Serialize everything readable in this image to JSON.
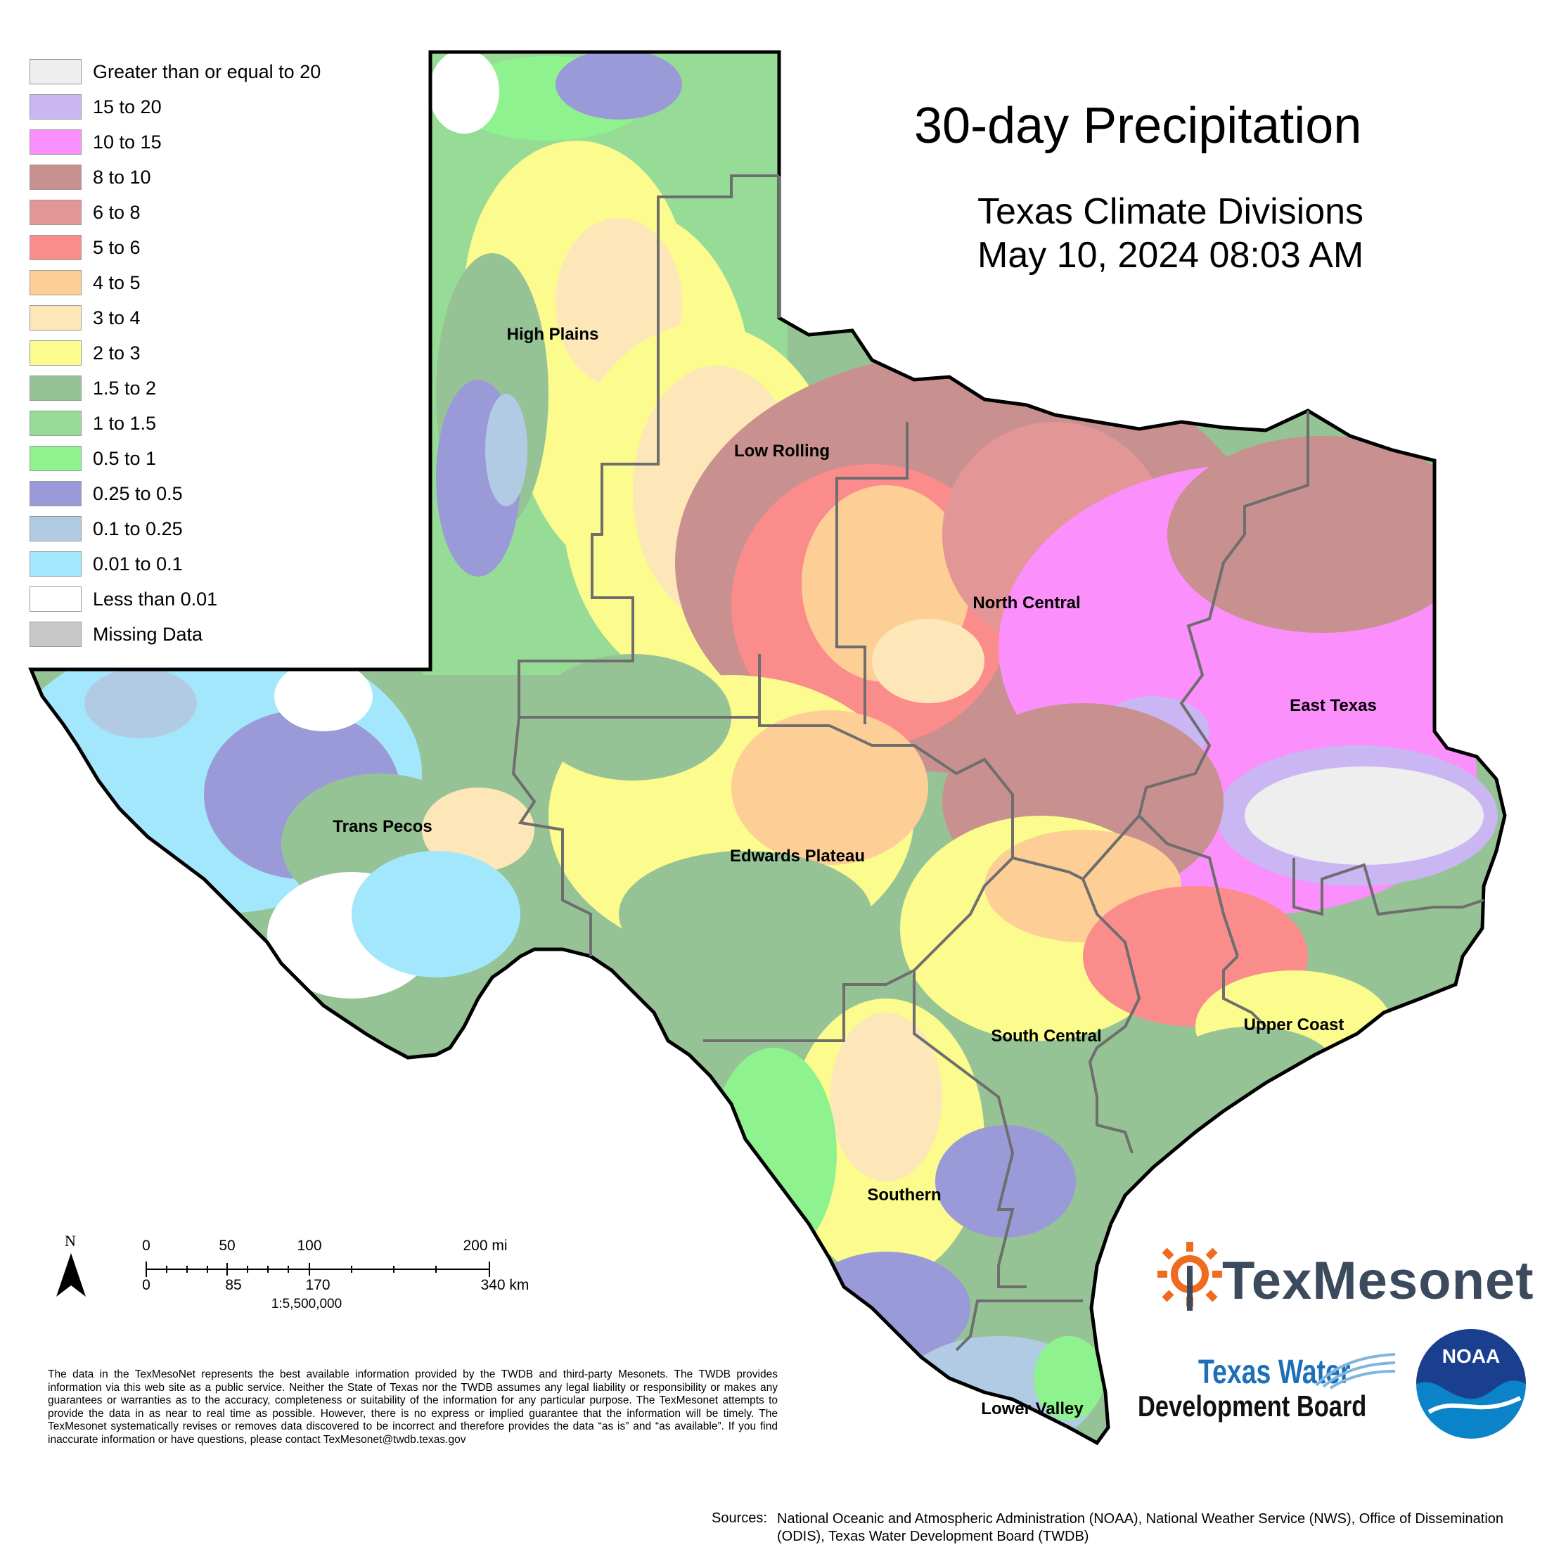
{
  "title": "30-day Precipitation",
  "subtitle_line1": "Texas Climate Divisions",
  "subtitle_line2": "May 10, 2024 08:03 AM",
  "legend": [
    {
      "label": "Greater than or equal to 20",
      "color": "#eeeeee"
    },
    {
      "label": "15 to 20",
      "color": "#c9b6f3"
    },
    {
      "label": "10 to 15",
      "color": "#fb8ffb"
    },
    {
      "label": "8 to 10",
      "color": "#c99090"
    },
    {
      "label": "6 to 8",
      "color": "#e29696"
    },
    {
      "label": "5 to 6",
      "color": "#fb8c8c"
    },
    {
      "label": "4 to 5",
      "color": "#fdce96"
    },
    {
      "label": "3 to 4",
      "color": "#fde7b9"
    },
    {
      "label": "2 to 3",
      "color": "#fbfb8e"
    },
    {
      "label": "1.5 to 2",
      "color": "#96c396"
    },
    {
      "label": "1 to 1.5",
      "color": "#96dc96"
    },
    {
      "label": "0.5 to 1",
      "color": "#8ef38e"
    },
    {
      "label": "0.25 to 0.5",
      "color": "#9a9ad9"
    },
    {
      "label": "0.1 to 0.25",
      "color": "#b2cbe5"
    },
    {
      "label": "0.01 to 0.1",
      "color": "#a3e7fc"
    },
    {
      "label": "Less than 0.01",
      "color": "#ffffff"
    },
    {
      "label": "Missing Data",
      "color": "#c8c8c8"
    }
  ],
  "regions": {
    "high_plains": "High Plains",
    "low_rolling": "Low Rolling",
    "north_central": "North Central",
    "east_texas": "East Texas",
    "trans_pecos": "Trans Pecos",
    "edwards_plateau": "Edwards Plateau",
    "south_central": "South Central",
    "upper_coast": "Upper Coast",
    "southern": "Southern",
    "lower_valley": "Lower Valley"
  },
  "scale_bar": {
    "north_label": "N",
    "miles": [
      "0",
      "50",
      "100",
      "200 mi"
    ],
    "km": [
      "0",
      "85",
      "170",
      "340 km"
    ],
    "ratio": "1:5,500,000"
  },
  "disclaimer": "The data in the TexMesoNet represents the best available information provided by the TWDB and third-party Mesonets. The TWDB provides information via this web site as a public service. Neither the State of Texas nor the TWDB assumes any legal liability or responsibility or makes any guarantees or warranties as to the accuracy, completeness or suitability of the information for any particular purpose. The TexMesonet attempts to provide the data in as near to real time as possible. However, there is no express or implied guarantee that the information will be timely. The TexMesonet systematically revises or removes data discovered to be incorrect and therefore provides the data “as is” and “as available”. If you find inaccurate information or have questions, please contact TexMesonet@twdb.texas.gov",
  "sources_label": "Sources:",
  "sources_text": "National Oceanic and Atmospheric Administration (NOAA), National Weather Service (NWS), Office of Dissemination (ODIS), Texas Water Development Board (TWDB)",
  "logos": {
    "texmesonet": "TexMesonet",
    "twdb_line1": "Texas Water",
    "twdb_line2": "Development Board",
    "noaa": "NOAA"
  }
}
